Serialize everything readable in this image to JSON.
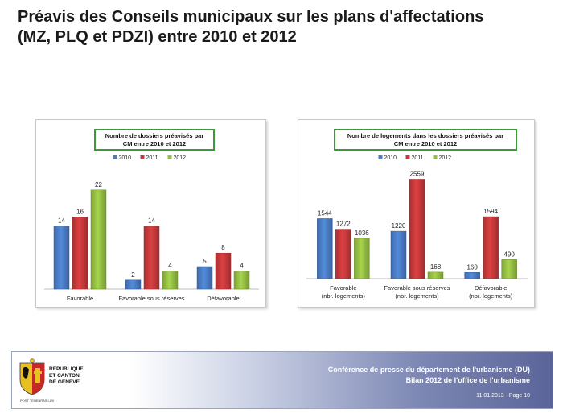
{
  "title_line1": "Préavis des Conseils municipaux sur les plans d'affectations",
  "title_line2": "(MZ, PLQ et PDZI) entre 2010 et 2012",
  "colors": {
    "2010": "#4a7cc4",
    "2011": "#c6393b",
    "2012": "#95be44",
    "box_border": "#3a9a3a"
  },
  "chart_data": [
    {
      "type": "bar",
      "title_lines": [
        "Nombre de dossiers préavisés par",
        "CM entre 2010 et 2012"
      ],
      "categories": [
        [
          "Favorable"
        ],
        [
          "Favorable sous réserves"
        ],
        [
          "Défavorable"
        ]
      ],
      "series": [
        {
          "name": "2010",
          "values": [
            14,
            2,
            5
          ]
        },
        {
          "name": "2011",
          "values": [
            16,
            14,
            8
          ]
        },
        {
          "name": "2012",
          "values": [
            22,
            4,
            4
          ]
        }
      ],
      "ylim": [
        0,
        25
      ],
      "legend_position": "top",
      "grid": false
    },
    {
      "type": "bar",
      "title_lines": [
        "Nombre de logements dans les dossiers préavisés par",
        "CM entre 2010 et 2012"
      ],
      "categories": [
        [
          "Favorable",
          "(nbr. logements)"
        ],
        [
          "Favorable sous réserves",
          "(nbr. logements)"
        ],
        [
          "Défavorable",
          "(nbr. logements)"
        ]
      ],
      "series": [
        {
          "name": "2010",
          "values": [
            1544,
            1220,
            160
          ]
        },
        {
          "name": "2011",
          "values": [
            1272,
            2559,
            1594
          ]
        },
        {
          "name": "2012",
          "values": [
            1036,
            168,
            490
          ]
        }
      ],
      "ylim": [
        0,
        2900
      ],
      "legend_position": "top",
      "grid": false
    }
  ],
  "footer": {
    "logo_text": [
      "REPUBLIQUE",
      "ET CANTON",
      "DE GENEVE"
    ],
    "logo_motto": "POST TENEBRAS LUX",
    "line1": "Conférence de presse du département de l'urbanisme (DU)",
    "line2": "Bilan 2012 de l'office de l'urbanisme",
    "page": "11.01.2013 - Page 10"
  }
}
